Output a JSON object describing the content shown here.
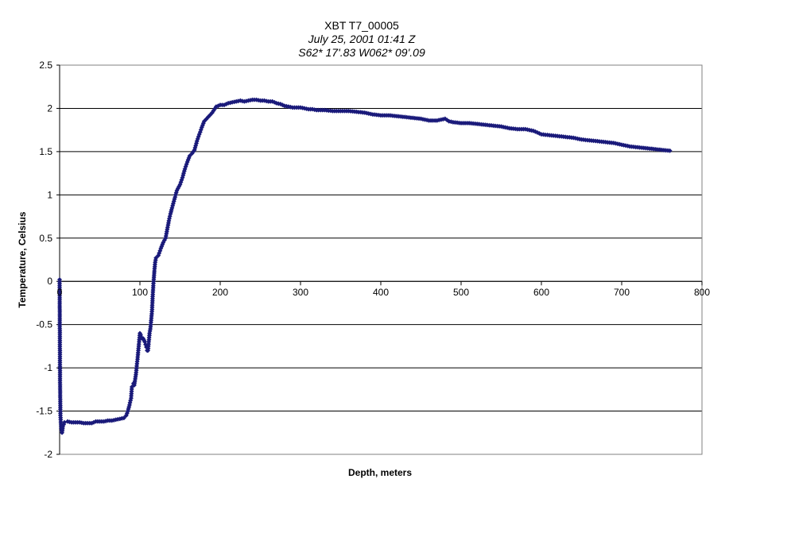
{
  "chart_data": {
    "type": "line",
    "title": "XBT T7_00005",
    "subtitle_lines": [
      "July 25, 2001  01:41 Z",
      "S62* 17'.83  W062* 09'.09"
    ],
    "xlabel": "Depth, meters",
    "ylabel": "Temperature, Celsius",
    "xlim": [
      0,
      800
    ],
    "ylim": [
      -2,
      2.5
    ],
    "x_ticks": [
      0,
      100,
      200,
      300,
      400,
      500,
      600,
      700,
      800
    ],
    "y_ticks": [
      2.5,
      2,
      1.5,
      1,
      0.5,
      0,
      -0.5,
      -1,
      -1.5,
      -2
    ],
    "y_tick_labels": [
      "2.5",
      "2",
      "1.5",
      "1",
      "0.5",
      "0",
      "-0.5",
      "-1",
      "-1.5",
      "-2"
    ],
    "grid": "horizontal",
    "legend": "none",
    "marker": "diamond",
    "series_color": "#1a1a7a",
    "series": [
      {
        "points": [
          [
            0,
            0.02
          ],
          [
            0.5,
            -1.15
          ],
          [
            1,
            -1.55
          ],
          [
            2,
            -1.7
          ],
          [
            3,
            -1.75
          ],
          [
            4,
            -1.68
          ],
          [
            6,
            -1.63
          ],
          [
            10,
            -1.62
          ],
          [
            15,
            -1.63
          ],
          [
            20,
            -1.63
          ],
          [
            25,
            -1.63
          ],
          [
            30,
            -1.64
          ],
          [
            35,
            -1.64
          ],
          [
            40,
            -1.64
          ],
          [
            45,
            -1.62
          ],
          [
            50,
            -1.62
          ],
          [
            55,
            -1.62
          ],
          [
            60,
            -1.61
          ],
          [
            65,
            -1.61
          ],
          [
            70,
            -1.6
          ],
          [
            75,
            -1.59
          ],
          [
            80,
            -1.58
          ],
          [
            83,
            -1.55
          ],
          [
            85,
            -1.5
          ],
          [
            87,
            -1.43
          ],
          [
            89,
            -1.35
          ],
          [
            90,
            -1.22
          ],
          [
            92,
            -1.18
          ],
          [
            93,
            -1.2
          ],
          [
            95,
            -1.08
          ],
          [
            96,
            -0.98
          ],
          [
            97,
            -0.9
          ],
          [
            98,
            -0.8
          ],
          [
            99,
            -0.7
          ],
          [
            100,
            -0.6
          ],
          [
            101,
            -0.62
          ],
          [
            102,
            -0.65
          ],
          [
            103,
            -0.66
          ],
          [
            104,
            -0.66
          ],
          [
            105,
            -0.68
          ],
          [
            106,
            -0.7
          ],
          [
            107,
            -0.73
          ],
          [
            108,
            -0.76
          ],
          [
            109,
            -0.8
          ],
          [
            110,
            -0.8
          ],
          [
            111,
            -0.7
          ],
          [
            112,
            -0.6
          ],
          [
            113,
            -0.55
          ],
          [
            114,
            -0.45
          ],
          [
            115,
            -0.35
          ],
          [
            116,
            -0.15
          ],
          [
            117,
            0.0
          ],
          [
            118,
            0.12
          ],
          [
            119,
            0.22
          ],
          [
            120,
            0.27
          ],
          [
            123,
            0.3
          ],
          [
            126,
            0.38
          ],
          [
            129,
            0.45
          ],
          [
            132,
            0.5
          ],
          [
            134,
            0.6
          ],
          [
            136,
            0.7
          ],
          [
            138,
            0.78
          ],
          [
            140,
            0.85
          ],
          [
            143,
            0.95
          ],
          [
            146,
            1.05
          ],
          [
            150,
            1.12
          ],
          [
            153,
            1.2
          ],
          [
            156,
            1.3
          ],
          [
            159,
            1.38
          ],
          [
            162,
            1.45
          ],
          [
            165,
            1.48
          ],
          [
            168,
            1.52
          ],
          [
            171,
            1.62
          ],
          [
            174,
            1.7
          ],
          [
            177,
            1.78
          ],
          [
            180,
            1.85
          ],
          [
            185,
            1.9
          ],
          [
            190,
            1.95
          ],
          [
            195,
            2.02
          ],
          [
            200,
            2.04
          ],
          [
            205,
            2.04
          ],
          [
            210,
            2.06
          ],
          [
            215,
            2.07
          ],
          [
            220,
            2.08
          ],
          [
            225,
            2.09
          ],
          [
            230,
            2.08
          ],
          [
            235,
            2.09
          ],
          [
            240,
            2.1
          ],
          [
            245,
            2.1
          ],
          [
            250,
            2.09
          ],
          [
            255,
            2.09
          ],
          [
            260,
            2.08
          ],
          [
            265,
            2.08
          ],
          [
            270,
            2.06
          ],
          [
            275,
            2.05
          ],
          [
            280,
            2.03
          ],
          [
            285,
            2.02
          ],
          [
            290,
            2.01
          ],
          [
            295,
            2.01
          ],
          [
            300,
            2.01
          ],
          [
            305,
            2.0
          ],
          [
            310,
            1.99
          ],
          [
            315,
            1.99
          ],
          [
            320,
            1.98
          ],
          [
            330,
            1.98
          ],
          [
            340,
            1.97
          ],
          [
            350,
            1.97
          ],
          [
            360,
            1.97
          ],
          [
            370,
            1.96
          ],
          [
            380,
            1.95
          ],
          [
            390,
            1.93
          ],
          [
            400,
            1.92
          ],
          [
            410,
            1.92
          ],
          [
            420,
            1.91
          ],
          [
            430,
            1.9
          ],
          [
            440,
            1.89
          ],
          [
            450,
            1.88
          ],
          [
            460,
            1.86
          ],
          [
            470,
            1.86
          ],
          [
            480,
            1.88
          ],
          [
            485,
            1.85
          ],
          [
            490,
            1.84
          ],
          [
            500,
            1.83
          ],
          [
            510,
            1.83
          ],
          [
            520,
            1.82
          ],
          [
            530,
            1.81
          ],
          [
            540,
            1.8
          ],
          [
            550,
            1.79
          ],
          [
            560,
            1.77
          ],
          [
            570,
            1.76
          ],
          [
            580,
            1.76
          ],
          [
            590,
            1.74
          ],
          [
            600,
            1.7
          ],
          [
            610,
            1.69
          ],
          [
            620,
            1.68
          ],
          [
            630,
            1.67
          ],
          [
            640,
            1.66
          ],
          [
            650,
            1.64
          ],
          [
            660,
            1.63
          ],
          [
            670,
            1.62
          ],
          [
            680,
            1.61
          ],
          [
            690,
            1.6
          ],
          [
            700,
            1.58
          ],
          [
            710,
            1.56
          ],
          [
            720,
            1.55
          ],
          [
            730,
            1.54
          ],
          [
            740,
            1.53
          ],
          [
            750,
            1.52
          ],
          [
            760,
            1.51
          ]
        ]
      }
    ]
  }
}
